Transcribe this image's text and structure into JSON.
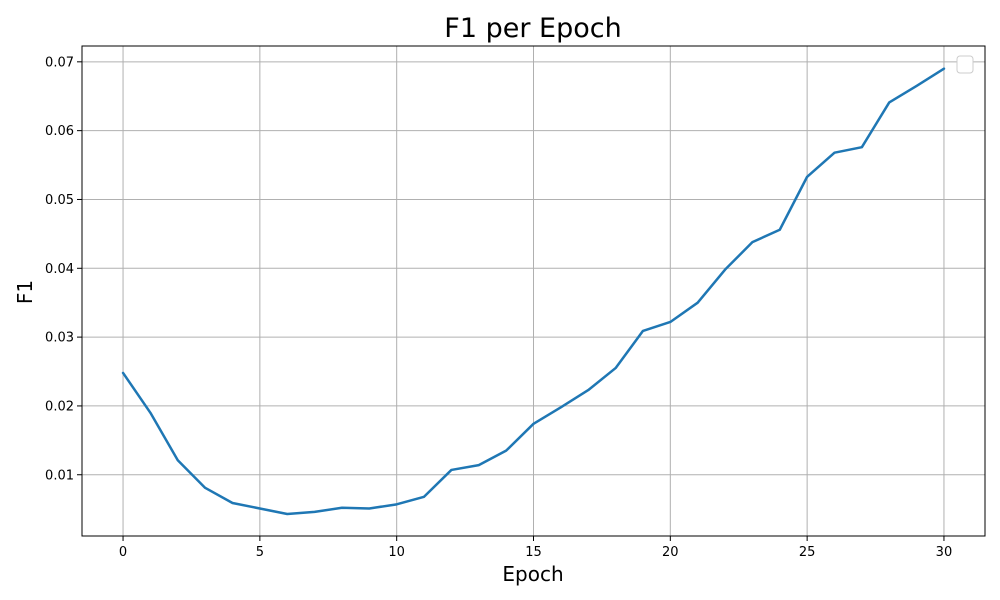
{
  "chart_data": {
    "type": "line",
    "title": "F1 per Epoch",
    "xlabel": "Epoch",
    "ylabel": "F1",
    "xlim": [
      -1.5,
      31.5
    ],
    "ylim": [
      0.0011,
      0.0723
    ],
    "xticks": [
      0,
      5,
      10,
      15,
      20,
      25,
      30
    ],
    "yticks": [
      0.01,
      0.02,
      0.03,
      0.04,
      0.05,
      0.06,
      0.07
    ],
    "xtick_labels": [
      "0",
      "5",
      "10",
      "15",
      "20",
      "25",
      "30"
    ],
    "ytick_labels": [
      "0.01",
      "0.02",
      "0.03",
      "0.04",
      "0.05",
      "0.06",
      "0.07"
    ],
    "grid": true,
    "legend": {
      "position": "top-right",
      "entries": []
    },
    "series": [
      {
        "color": "#1f77b4",
        "x": [
          0,
          1,
          2,
          3,
          4,
          5,
          6,
          7,
          8,
          9,
          10,
          11,
          12,
          13,
          14,
          15,
          16,
          17,
          18,
          19,
          20,
          21,
          22,
          23,
          24,
          25,
          26,
          27,
          28,
          29,
          30
        ],
        "y": [
          0.0248,
          0.019,
          0.0121,
          0.0081,
          0.0059,
          0.0051,
          0.0043,
          0.0046,
          0.0052,
          0.0051,
          0.0057,
          0.0068,
          0.0107,
          0.0114,
          0.0135,
          0.0174,
          0.0198,
          0.0223,
          0.0255,
          0.0309,
          0.0322,
          0.035,
          0.0398,
          0.0438,
          0.0456,
          0.0533,
          0.0568,
          0.0576,
          0.0641,
          0.0665,
          0.069
        ]
      }
    ]
  }
}
